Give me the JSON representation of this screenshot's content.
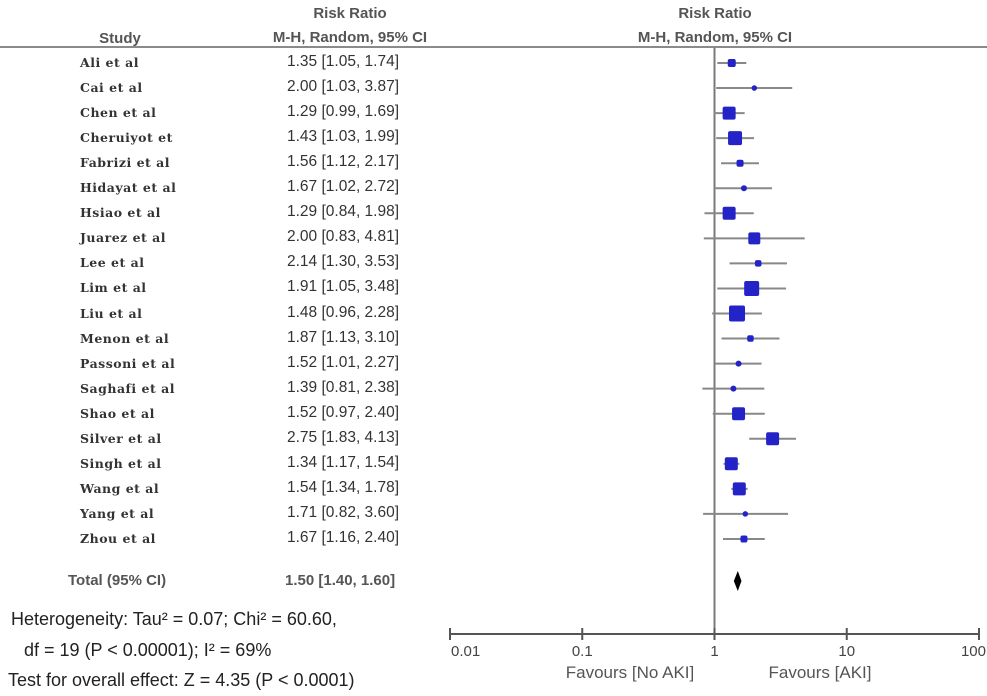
{
  "chart_data": {
    "type": "forest",
    "headers": {
      "study_col": "Study",
      "value_col_line1": "Risk Ratio",
      "value_col_line2": "M-H, Random, 95% CI",
      "plot_col_line1": "Risk Ratio",
      "plot_col_line2": "M-H, Random, 95% CI"
    },
    "studies": [
      {
        "name": "Ali et al",
        "rr": 1.35,
        "lo": 1.05,
        "hi": 1.74,
        "text": "1.35 [1.05, 1.74]",
        "weight": 1
      },
      {
        "name": "Cai et al",
        "rr": 2.0,
        "lo": 1.03,
        "hi": 3.87,
        "text": "2.00 [1.03, 3.87]",
        "weight": 0.5
      },
      {
        "name": "Chen et al",
        "rr": 1.29,
        "lo": 0.99,
        "hi": 1.69,
        "text": "1.29 [0.99, 1.69]",
        "weight": 2
      },
      {
        "name": "Cheruiyot et",
        "rr": 1.43,
        "lo": 1.03,
        "hi": 1.99,
        "text": "1.43 [1.03, 1.99]",
        "weight": 2.2
      },
      {
        "name": "Fabrizi et al",
        "rr": 1.56,
        "lo": 1.12,
        "hi": 2.17,
        "text": "1.56 [1.12, 2.17]",
        "weight": 0.8
      },
      {
        "name": "Hidayat et al",
        "rr": 1.67,
        "lo": 1.02,
        "hi": 2.72,
        "text": "1.67 [1.02, 2.72]",
        "weight": 0.6
      },
      {
        "name": "Hsiao et al",
        "rr": 1.29,
        "lo": 0.84,
        "hi": 1.98,
        "text": "1.29 [0.84, 1.98]",
        "weight": 2
      },
      {
        "name": "Juarez et al",
        "rr": 2.0,
        "lo": 0.83,
        "hi": 4.81,
        "text": "2.00 [0.83, 4.81]",
        "weight": 1.8
      },
      {
        "name": "Lee et al",
        "rr": 2.14,
        "lo": 1.3,
        "hi": 3.53,
        "text": "2.14 [1.30, 3.53]",
        "weight": 0.7
      },
      {
        "name": "Lim et al",
        "rr": 1.91,
        "lo": 1.05,
        "hi": 3.48,
        "text": "1.91 [1.05, 3.48]",
        "weight": 2.4
      },
      {
        "name": "Liu et al",
        "rr": 1.48,
        "lo": 0.96,
        "hi": 2.28,
        "text": "1.48 [0.96, 2.28]",
        "weight": 2.6
      },
      {
        "name": "Menon et al",
        "rr": 1.87,
        "lo": 1.13,
        "hi": 3.1,
        "text": "1.87 [1.13, 3.10]",
        "weight": 0.7
      },
      {
        "name": "Passoni et al",
        "rr": 1.52,
        "lo": 1.01,
        "hi": 2.27,
        "text": "1.52 [1.01, 2.27]",
        "weight": 0.6
      },
      {
        "name": "Saghafi et al",
        "rr": 1.39,
        "lo": 0.81,
        "hi": 2.38,
        "text": "1.39 [0.81, 2.38]",
        "weight": 0.6
      },
      {
        "name": "Shao et al",
        "rr": 1.52,
        "lo": 0.97,
        "hi": 2.4,
        "text": "1.52 [0.97, 2.40]",
        "weight": 2
      },
      {
        "name": "Silver et al",
        "rr": 2.75,
        "lo": 1.83,
        "hi": 4.13,
        "text": "2.75 [1.83, 4.13]",
        "weight": 2
      },
      {
        "name": "Singh et al",
        "rr": 1.34,
        "lo": 1.17,
        "hi": 1.54,
        "text": "1.34 [1.17, 1.54]",
        "weight": 2
      },
      {
        "name": "Wang et al",
        "rr": 1.54,
        "lo": 1.34,
        "hi": 1.78,
        "text": "1.54 [1.34, 1.78]",
        "weight": 2
      },
      {
        "name": "Yang et al",
        "rr": 1.71,
        "lo": 0.82,
        "hi": 3.6,
        "text": "1.71 [0.82, 3.60]",
        "weight": 0.5
      },
      {
        "name": "Zhou et al",
        "rr": 1.67,
        "lo": 1.16,
        "hi": 2.4,
        "text": "1.67 [1.16, 2.40]",
        "weight": 0.8
      }
    ],
    "total": {
      "label": "Total (95% CI)",
      "rr": 1.5,
      "lo": 1.4,
      "hi": 1.6,
      "text": "1.50 [1.40, 1.60]"
    },
    "heterogeneity_line1": "Heterogeneity: Tau² = 0.07; Chi² = 60.60,",
    "heterogeneity_line2": "df = 19 (P < 0.00001); I² = 69%",
    "overall_effect": "Test for overall effect: Z = 4.35 (P < 0.0001)",
    "x_axis": {
      "scale": "log",
      "range": [
        0.01,
        100
      ],
      "ticks": [
        0.01,
        0.1,
        1,
        10,
        100
      ],
      "tick_labels": [
        "0.01",
        "0.1",
        "1",
        "10",
        "100"
      ],
      "favours_left": "Favours [No AKI]",
      "favours_right": "Favours [AKI]"
    },
    "colors": {
      "marker": "#2323c8",
      "ci_line": "#888888",
      "diamond": "#000000",
      "axis": "#555555"
    }
  }
}
